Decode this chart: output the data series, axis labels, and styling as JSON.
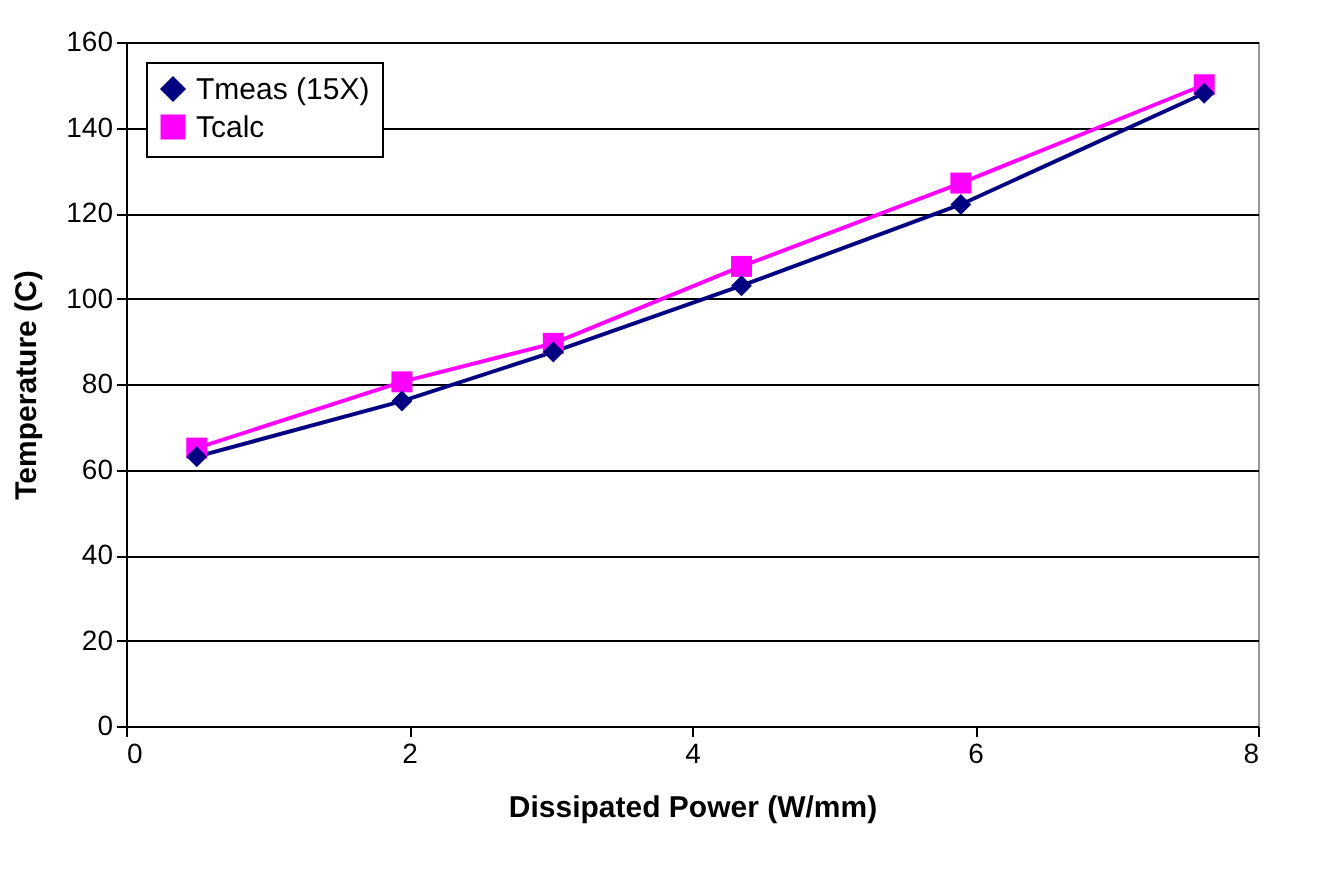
{
  "chart_data": {
    "type": "line",
    "xlabel": "Dissipated Power (W/mm)",
    "ylabel": "Temperature (C)",
    "x": [
      0.5,
      1.95,
      3.02,
      4.35,
      5.9,
      7.62
    ],
    "series": [
      {
        "name": "Tmeas (15X)",
        "color": "#000080",
        "marker": "diamond",
        "values": [
          63,
          76,
          87.5,
          103,
          122,
          148
        ]
      },
      {
        "name": "Tcalc",
        "color": "#ff00ff",
        "marker": "square",
        "values": [
          65,
          80.5,
          89.5,
          107.5,
          127,
          150
        ]
      }
    ],
    "xlim": [
      0,
      8
    ],
    "xticks": [
      0,
      2,
      4,
      6,
      8
    ],
    "ylim": [
      0,
      160
    ],
    "yticks": [
      0,
      20,
      40,
      60,
      80,
      100,
      120,
      140,
      160
    ],
    "grid": "y",
    "legend": "top left"
  }
}
